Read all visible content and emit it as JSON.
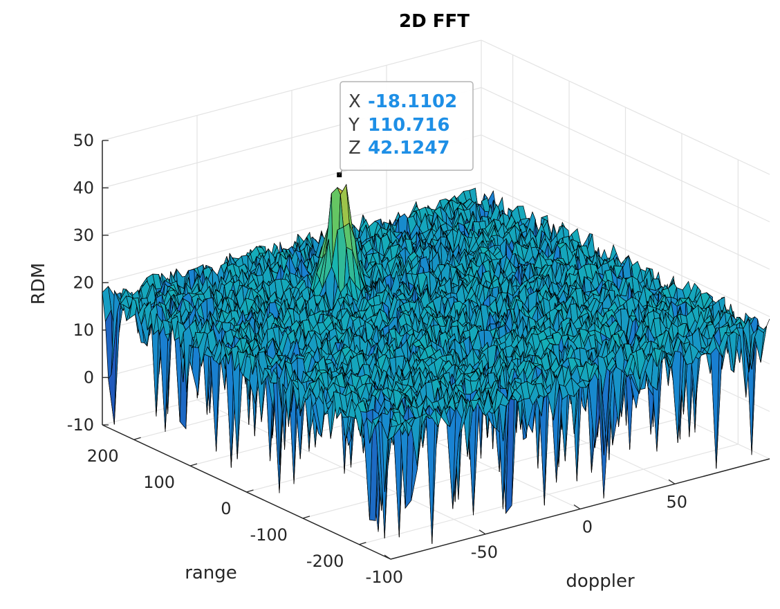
{
  "chart_data": {
    "type": "surface",
    "title": "2D FFT",
    "xlabel": "doppler",
    "ylabel": "range",
    "zlabel": "RDM",
    "xlim": [
      -100,
      100
    ],
    "ylim": [
      -256,
      256
    ],
    "zlim": [
      -10,
      50
    ],
    "x_ticks": [
      "-100",
      "-50",
      "0",
      "50"
    ],
    "y_ticks": [
      "-200",
      "-100",
      "0",
      "100",
      "200"
    ],
    "z_ticks": [
      "-10",
      "0",
      "10",
      "20",
      "30",
      "40",
      "50"
    ],
    "grid": true,
    "colormap": "parula",
    "noise_floor_mean": 17,
    "peak": {
      "x": -18.1102,
      "y": 110.716,
      "z": 42.1247
    },
    "datatip": {
      "x_key": "X",
      "x_value": "-18.1102",
      "y_key": "Y",
      "y_value": "110.716",
      "z_key": "Z",
      "z_value": "42.1247"
    },
    "colors": {
      "datatip_value": "#1e8fe6",
      "edge": "#000000",
      "low": "#2a3a9e",
      "mid": "#14b8b8",
      "high": "#f2c12e"
    }
  }
}
